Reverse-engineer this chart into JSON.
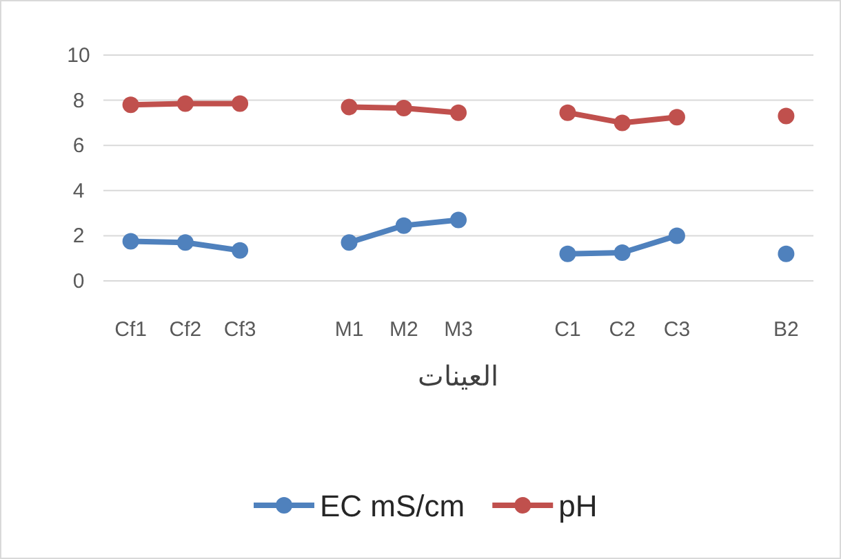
{
  "chart_data": {
    "type": "line",
    "xlabel": "العينات",
    "categories": [
      "Cf1",
      "Cf2",
      "Cf3",
      null,
      "M1",
      "M2",
      "M3",
      null,
      "C1",
      "C2",
      "C3",
      null,
      "B2"
    ],
    "series": [
      {
        "name": "EC mS/cm",
        "color": "#4f81bd",
        "values": [
          1.75,
          1.7,
          1.35,
          null,
          1.7,
          2.45,
          2.7,
          null,
          1.2,
          1.25,
          2.0,
          null,
          1.2
        ]
      },
      {
        "name": "pH",
        "color": "#c0504d",
        "values": [
          7.8,
          7.85,
          7.85,
          null,
          7.7,
          7.65,
          7.45,
          null,
          7.45,
          7.0,
          7.25,
          null,
          7.3
        ]
      }
    ],
    "ylim": [
      0,
      10
    ],
    "yticks": [
      0,
      2,
      4,
      6,
      8,
      10
    ],
    "grid": "y",
    "legend": "bottom",
    "marker": "circle",
    "line_style": "solid"
  }
}
